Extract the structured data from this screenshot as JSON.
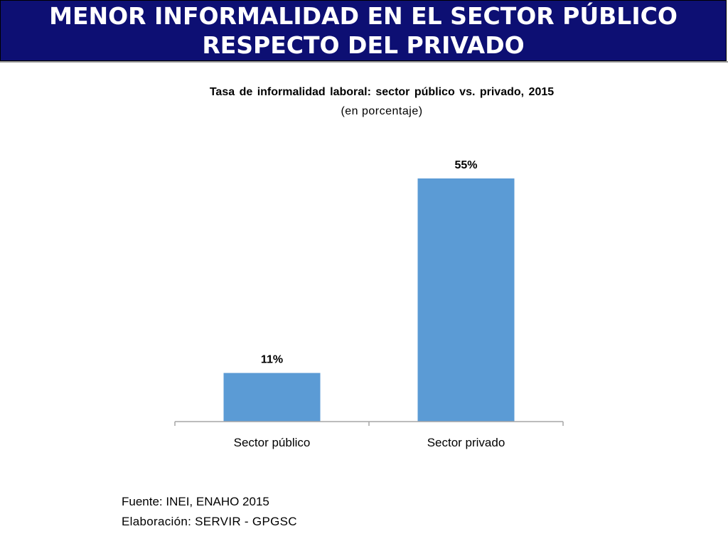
{
  "slide": {
    "heading_line1": "MENOR INFORMALIDAD EN EL SECTOR PÚBLICO",
    "heading_line2": "RESPECTO DEL PRIVADO",
    "source": "Fuente: INEI, ENAHO 2015",
    "credit": "Elaboración: SERVIR - GPGSC"
  },
  "colors": {
    "banner": "#0d0f73",
    "bar": "#5b9bd5",
    "axis": "#a6a6a6"
  },
  "chart_data": {
    "type": "bar",
    "title": "Tasa de informalidad laboral: sector público vs. privado, 2015",
    "subtitle": "(en porcentaje)",
    "categories": [
      "Sector público",
      "Sector privado"
    ],
    "values": [
      11,
      55
    ],
    "data_labels": [
      "11%",
      "55%"
    ],
    "unit": "%",
    "ylim": [
      0,
      55
    ],
    "grid": false,
    "legend": "none"
  }
}
